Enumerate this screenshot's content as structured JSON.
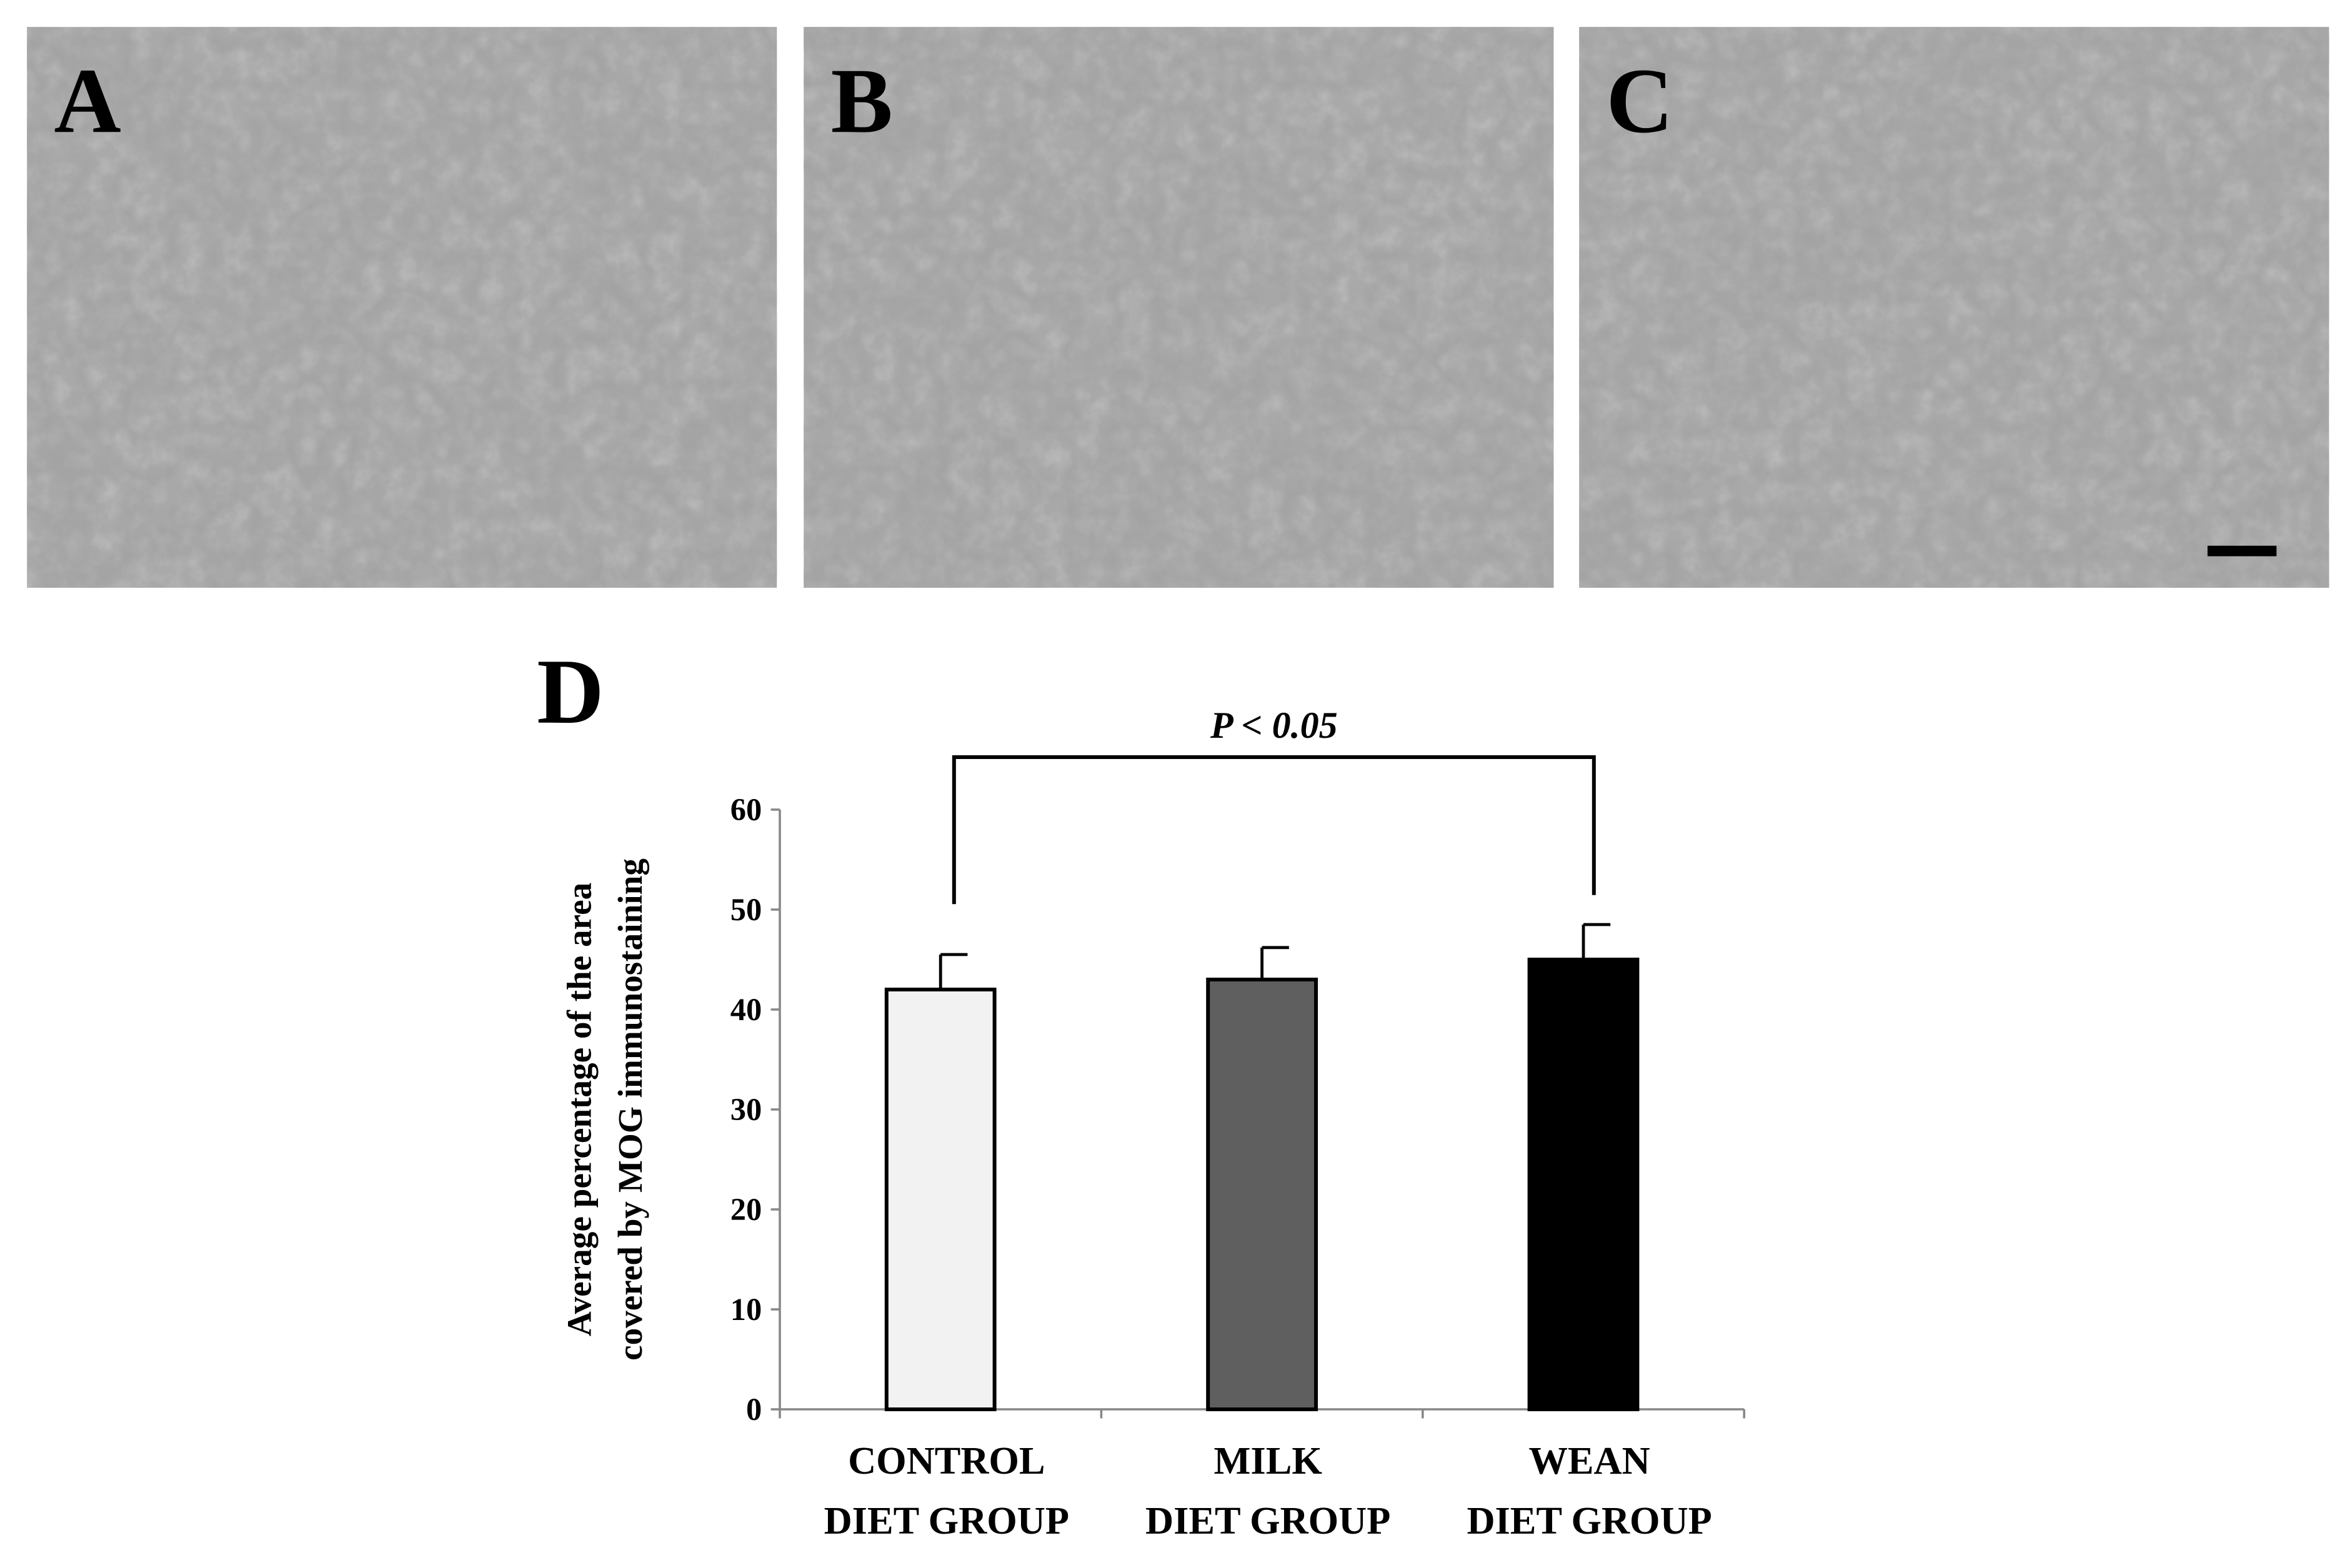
{
  "panels": [
    {
      "label": "A"
    },
    {
      "label": "B"
    },
    {
      "label": "C"
    }
  ],
  "chart_data": {
    "type": "bar",
    "panel_label": "D",
    "ylabel": [
      "Average percentage of the area",
      "covered by MOG immunostaining"
    ],
    "categories": [
      [
        "CONTROL",
        "DIET GROUP"
      ],
      [
        "MILK",
        "DIET GROUP"
      ],
      [
        "WEAN",
        "DIET GROUP"
      ]
    ],
    "values": [
      42,
      43,
      45
    ],
    "errors": [
      3.5,
      3.2,
      3.5
    ],
    "colors": [
      "#f2f2f2",
      "#5f5f5f",
      "#000000"
    ],
    "ylim": [
      0,
      60
    ],
    "yticks": [
      0,
      10,
      20,
      30,
      40,
      50,
      60
    ],
    "annotation": "P < 0.05"
  }
}
